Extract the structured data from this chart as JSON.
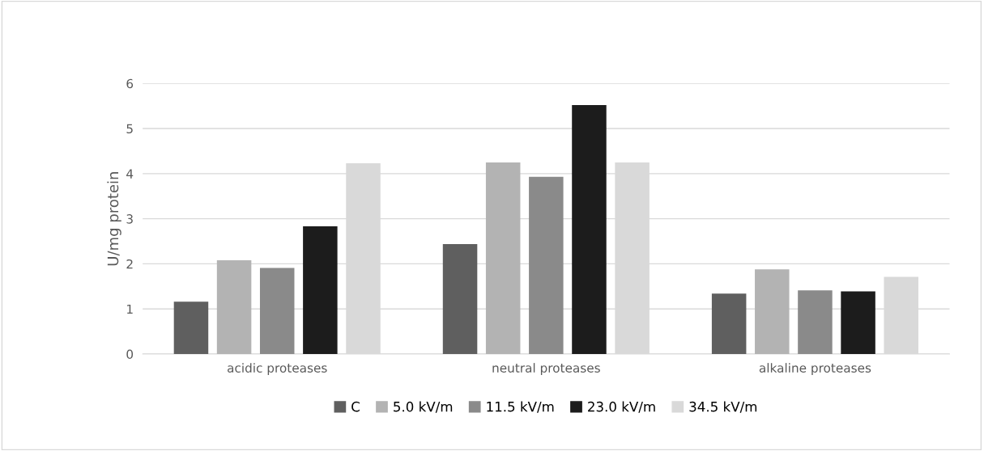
{
  "chart_data": {
    "type": "bar",
    "ylabel": "U/mg protein",
    "categories": [
      "acidic proteases",
      "neutral proteases",
      "alkaline proteases"
    ],
    "series": [
      {
        "name": "C",
        "color": "#5f5f5f",
        "values": [
          1.16,
          2.44,
          1.34
        ]
      },
      {
        "name": "5.0 kV/m",
        "color": "#b3b3b3",
        "values": [
          2.08,
          4.25,
          1.88
        ]
      },
      {
        "name": "11.5 kV/m",
        "color": "#8a8a8a",
        "values": [
          1.91,
          3.93,
          1.41
        ]
      },
      {
        "name": "23.0 kV/m",
        "color": "#1c1c1c",
        "values": [
          2.83,
          5.52,
          1.39
        ]
      },
      {
        "name": "34.5 kV/m",
        "color": "#d9d9d9",
        "values": [
          4.23,
          4.25,
          1.71
        ]
      }
    ],
    "ylim": [
      0,
      6
    ],
    "yticks": [
      0,
      1,
      2,
      3,
      4,
      5,
      6
    ],
    "grid": "y",
    "legend": "bottom"
  }
}
